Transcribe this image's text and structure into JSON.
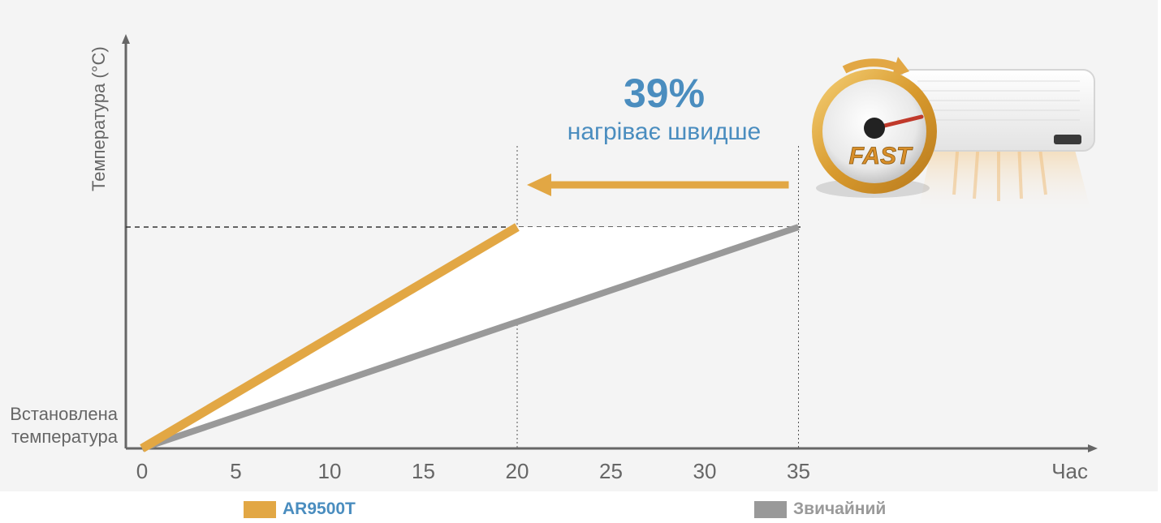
{
  "chart_data": {
    "type": "line",
    "xlabel": "Час",
    "ylabel": "Температура (°C)",
    "y_baseline_label_line1": "Встановлена",
    "y_baseline_label_line2": "температура",
    "x_ticks": [
      0,
      5,
      10,
      15,
      20,
      25,
      30,
      35
    ],
    "xlim": [
      0,
      50
    ],
    "ylim": [
      0,
      1
    ],
    "series": [
      {
        "name": "AR9500T",
        "color": "#e2a744",
        "x": [
          0,
          20
        ],
        "y": [
          0,
          1
        ]
      },
      {
        "name": "Звичайний",
        "color": "#999999",
        "x": [
          0,
          35
        ],
        "y": [
          0,
          1
        ]
      }
    ],
    "annotation": {
      "percent": "39%",
      "text": "нагріває швидше",
      "from_x": 35,
      "to_x": 20
    },
    "badge_text": "FAST",
    "colors": {
      "accent": "#e2a744",
      "conventional": "#999999",
      "headline": "#4a8dbf",
      "panel": "#f4f4f4"
    }
  }
}
